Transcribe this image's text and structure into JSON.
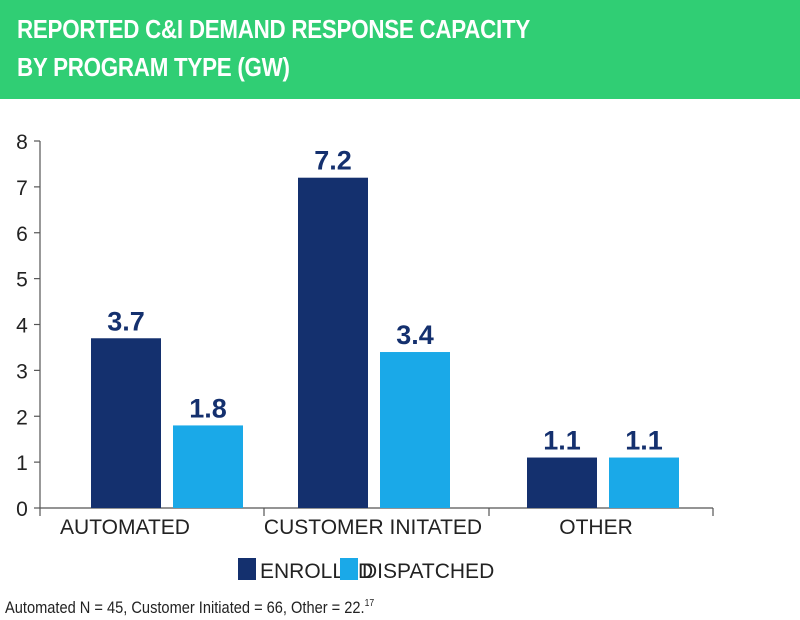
{
  "header": {
    "title_line1": "REPORTED C&I DEMAND RESPONSE CAPACITY",
    "title_line2": "BY PROGRAM TYPE (GW)"
  },
  "colors": {
    "header_bg": "#30ce74",
    "enrolled": "#14306e",
    "dispatched": "#1aa9e8",
    "axis": "#555555"
  },
  "chart_data": {
    "type": "bar",
    "title": "REPORTED C&I DEMAND RESPONSE CAPACITY BY PROGRAM TYPE (GW)",
    "categories": [
      "AUTOMATED",
      "CUSTOMER INITATED",
      "OTHER"
    ],
    "series": [
      {
        "name": "ENROLLED",
        "values": [
          3.7,
          7.2,
          1.1
        ],
        "labels": [
          "3.7",
          "7.2",
          "1.1"
        ]
      },
      {
        "name": "DISPATCHED",
        "values": [
          1.8,
          3.4,
          1.1
        ],
        "labels": [
          "1.8",
          "3.4",
          "1.1"
        ]
      }
    ],
    "ylim": [
      0,
      8
    ],
    "yticks": [
      "0",
      "1",
      "2",
      "3",
      "4",
      "5",
      "6",
      "7",
      "8"
    ],
    "xlabel": "",
    "ylabel": "",
    "grid": false,
    "legend_position": "bottom-center"
  },
  "footnote": {
    "text": "Automated N = 45, Customer Initiated = 66, Other = 22.",
    "superscript": "17"
  }
}
